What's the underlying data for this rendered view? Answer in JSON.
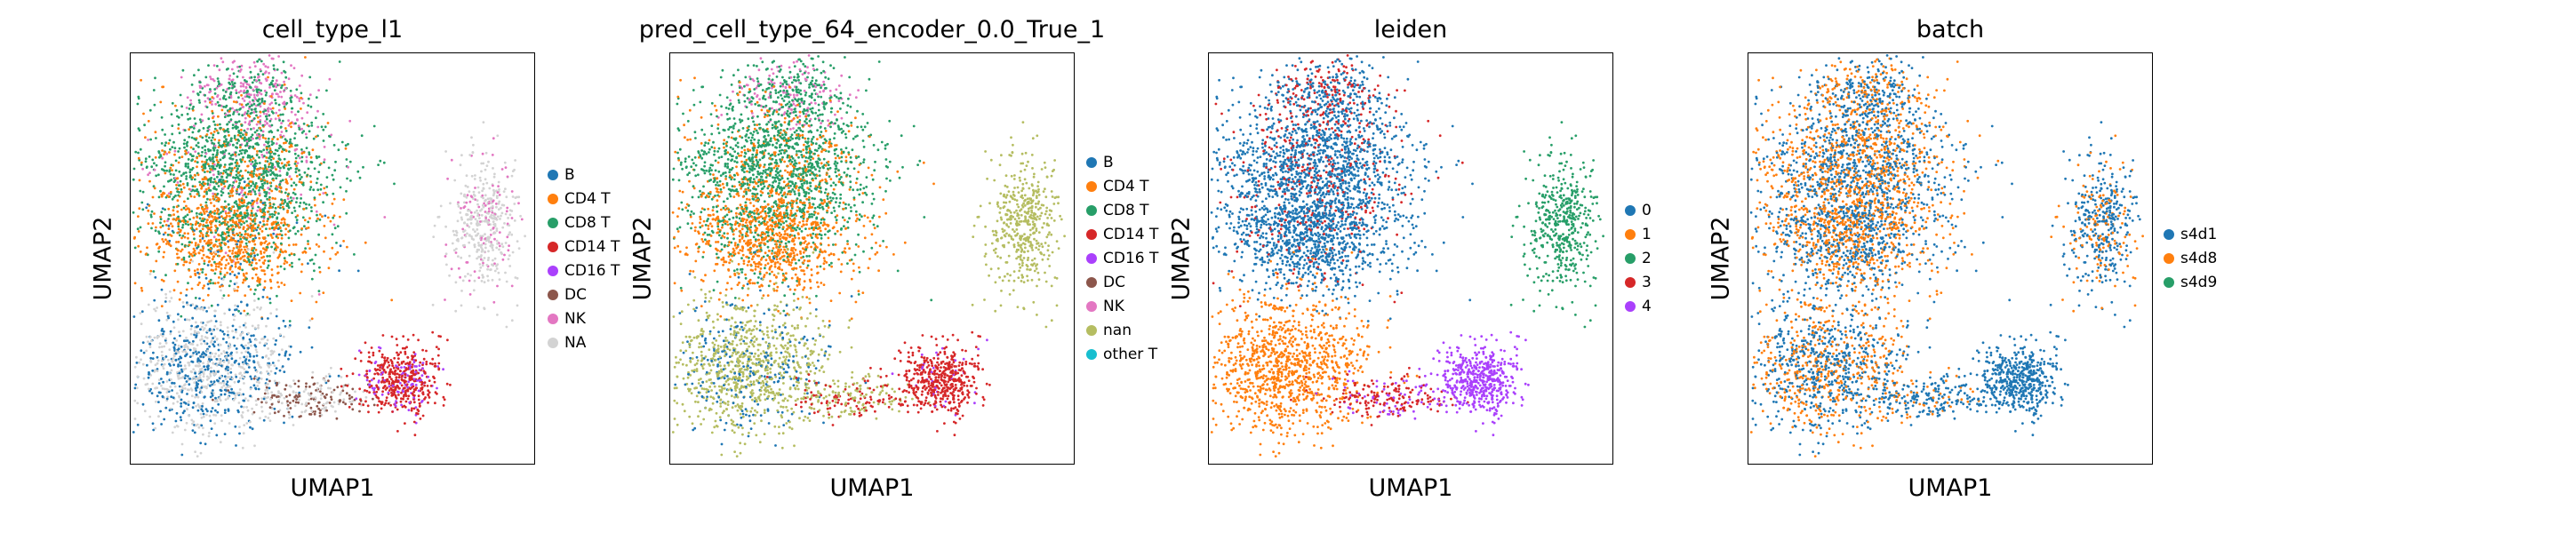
{
  "chart_data": [
    {
      "type": "scatter",
      "title": "cell_type_l1",
      "xlabel": "UMAP1",
      "ylabel": "UMAP2",
      "legend_position": "right",
      "legend": [
        {
          "label": "B",
          "color": "#1f77b4"
        },
        {
          "label": "CD4 T",
          "color": "#ff7f0e"
        },
        {
          "label": "CD8 T",
          "color": "#279e68"
        },
        {
          "label": "CD14 T",
          "color": "#d62728"
        },
        {
          "label": "CD16 T",
          "color": "#aa40fc"
        },
        {
          "label": "DC",
          "color": "#8c564b"
        },
        {
          "label": "NK",
          "color": "#e377c2"
        },
        {
          "label": "NA",
          "color": "#d3d3d3"
        }
      ]
    },
    {
      "type": "scatter",
      "title": "pred_cell_type_64_encoder_0.0_True_1",
      "xlabel": "UMAP1",
      "ylabel": "UMAP2",
      "legend_position": "right",
      "legend": [
        {
          "label": "B",
          "color": "#1f77b4"
        },
        {
          "label": "CD4 T",
          "color": "#ff7f0e"
        },
        {
          "label": "CD8 T",
          "color": "#279e68"
        },
        {
          "label": "CD14 T",
          "color": "#d62728"
        },
        {
          "label": "CD16 T",
          "color": "#aa40fc"
        },
        {
          "label": "DC",
          "color": "#8c564b"
        },
        {
          "label": "NK",
          "color": "#e377c2"
        },
        {
          "label": "nan",
          "color": "#b5bd61"
        },
        {
          "label": "other T",
          "color": "#17becf"
        }
      ]
    },
    {
      "type": "scatter",
      "title": "leiden",
      "xlabel": "UMAP1",
      "ylabel": "UMAP2",
      "legend_position": "right",
      "legend": [
        {
          "label": "0",
          "color": "#1f77b4"
        },
        {
          "label": "1",
          "color": "#ff7f0e"
        },
        {
          "label": "2",
          "color": "#279e68"
        },
        {
          "label": "3",
          "color": "#d62728"
        },
        {
          "label": "4",
          "color": "#aa40fc"
        }
      ]
    },
    {
      "type": "scatter",
      "title": "batch",
      "xlabel": "UMAP1",
      "ylabel": "UMAP2",
      "legend_position": "right",
      "legend": [
        {
          "label": "s4d1",
          "color": "#1f77b4"
        },
        {
          "label": "s4d8",
          "color": "#ff7f0e"
        },
        {
          "label": "s4d9",
          "color": "#279e68"
        }
      ]
    }
  ]
}
